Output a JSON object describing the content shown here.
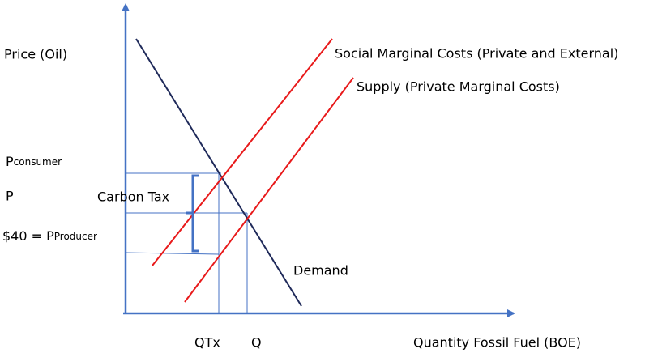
{
  "axes": {
    "y_label": "Price (Oil)",
    "x_label": "Quantity Fossil Fuel (BOE)"
  },
  "curves": {
    "social": "Social Marginal Costs (Private and External)",
    "supply": "Supply (Private Marginal Costs)",
    "demand": "Demand"
  },
  "price_labels": {
    "consumer": {
      "main": "P",
      "sub": "consumer"
    },
    "equilibrium": "P",
    "producer": {
      "main": "$40 = P",
      "sub": "Producer"
    }
  },
  "tax_label": "Carbon Tax",
  "quantity_labels": {
    "tax": "QTx",
    "equilibrium": "Q"
  }
}
